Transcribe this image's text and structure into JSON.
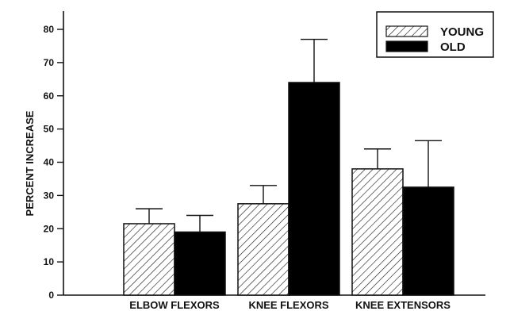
{
  "chart_data": {
    "type": "bar",
    "categories": [
      "ELBOW FLEXORS",
      "KNEE FLEXORS",
      "KNEE EXTENSORS"
    ],
    "series": [
      {
        "name": "YOUNG",
        "values": [
          21.5,
          27.5,
          38
        ],
        "errors": [
          4.5,
          5.5,
          6
        ],
        "fill": "hatched"
      },
      {
        "name": "OLD",
        "values": [
          19,
          64,
          32.5
        ],
        "errors": [
          5,
          13,
          14
        ],
        "fill": "solid"
      }
    ],
    "ylabel": "PERCENT INCREASE",
    "xlabel": "",
    "ylim": [
      0,
      80
    ],
    "yticks": [
      0,
      10,
      20,
      30,
      40,
      50,
      60,
      70,
      80
    ],
    "grid": false,
    "legend_position": "top-right",
    "colors": {
      "bar_stroke": "#111111",
      "solid_fill": "#000000",
      "hatch": "#111111"
    }
  }
}
